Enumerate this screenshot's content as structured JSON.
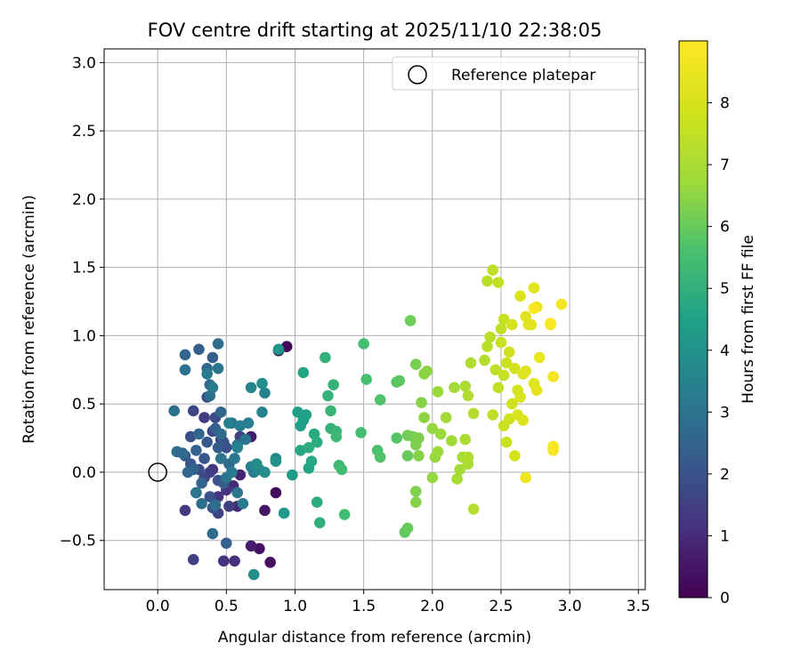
{
  "chart_data": {
    "type": "scatter",
    "title": "FOV centre drift starting at 2025/11/10 22:38:05",
    "xlabel": "Angular distance from reference (arcmin)",
    "ylabel": "Rotation from reference (arcmin)",
    "xlim": [
      -0.39,
      3.55
    ],
    "ylim": [
      -0.86,
      3.1
    ],
    "xticks": [
      0.0,
      0.5,
      1.0,
      1.5,
      2.0,
      2.5,
      3.0,
      3.5
    ],
    "xtick_labels": [
      "0.0",
      "0.5",
      "1.0",
      "1.5",
      "2.0",
      "2.5",
      "3.0",
      "3.5"
    ],
    "yticks": [
      -0.5,
      0.0,
      0.5,
      1.0,
      1.5,
      2.0,
      2.5,
      3.0
    ],
    "ytick_labels": [
      "−0.5",
      "0.0",
      "0.5",
      "1.0",
      "1.5",
      "2.0",
      "2.5",
      "3.0"
    ],
    "grid": true,
    "legend": {
      "placement": "top-right",
      "label": "Reference platepar"
    },
    "reference_point": {
      "x": 0.0,
      "y": 0.0
    },
    "colorbar": {
      "label": "Hours from first FF file",
      "min": 0,
      "max": 9,
      "ticks": [
        0,
        1,
        2,
        3,
        4,
        5,
        6,
        7,
        8
      ],
      "tick_labels": [
        "0",
        "1",
        "2",
        "3",
        "4",
        "5",
        "6",
        "7",
        "8"
      ],
      "colormap": "viridis"
    },
    "points": [
      [
        0.94,
        0.92,
        0.1
      ],
      [
        0.88,
        0.89,
        0.2
      ],
      [
        0.86,
        -0.15,
        0.2
      ],
      [
        0.82,
        -0.66,
        0.3
      ],
      [
        0.74,
        -0.56,
        0.4
      ],
      [
        0.78,
        -0.28,
        0.5
      ],
      [
        0.68,
        -0.54,
        0.6
      ],
      [
        0.68,
        0.26,
        0.7
      ],
      [
        0.6,
        -0.02,
        0.8
      ],
      [
        0.58,
        -0.25,
        0.9
      ],
      [
        0.55,
        -0.1,
        1.0
      ],
      [
        0.48,
        -0.65,
        1.1
      ],
      [
        0.56,
        -0.65,
        1.1
      ],
      [
        0.5,
        -0.13,
        1.2
      ],
      [
        0.44,
        -0.18,
        1.2
      ],
      [
        0.4,
        0.02,
        1.3
      ],
      [
        0.2,
        -0.28,
        1.3
      ],
      [
        0.34,
        0.4,
        1.4
      ],
      [
        0.38,
        0.0,
        1.4
      ],
      [
        0.26,
        -0.64,
        1.5
      ],
      [
        0.52,
        -0.25,
        1.5
      ],
      [
        0.26,
        0.45,
        1.6
      ],
      [
        0.44,
        -0.3,
        1.6
      ],
      [
        0.6,
        0.26,
        1.6
      ],
      [
        0.4,
        0.3,
        1.7
      ],
      [
        0.34,
        -0.04,
        1.7
      ],
      [
        0.46,
        0.24,
        1.7
      ],
      [
        0.3,
        0.02,
        1.8
      ],
      [
        0.36,
        0.55,
        1.8
      ],
      [
        0.42,
        0.4,
        1.8
      ],
      [
        0.24,
        0.26,
        1.9
      ],
      [
        0.5,
        0.18,
        1.9
      ],
      [
        0.28,
        -0.15,
        1.9
      ],
      [
        0.38,
        -0.18,
        2.0
      ],
      [
        0.44,
        -0.06,
        2.0
      ],
      [
        0.48,
        0.22,
        2.0
      ],
      [
        0.24,
        0.06,
        2.1
      ],
      [
        0.4,
        -0.26,
        2.1
      ],
      [
        0.34,
        0.1,
        2.1
      ],
      [
        0.2,
        0.12,
        2.2
      ],
      [
        0.44,
        0.18,
        2.2
      ],
      [
        0.36,
        0.22,
        2.2
      ],
      [
        0.3,
        0.9,
        2.3
      ],
      [
        0.48,
        -0.08,
        2.3
      ],
      [
        0.4,
        0.84,
        2.3
      ],
      [
        0.28,
        0.16,
        2.4
      ],
      [
        0.42,
        0.32,
        2.4
      ],
      [
        0.5,
        -0.52,
        2.4
      ],
      [
        0.32,
        -0.08,
        2.5
      ],
      [
        0.26,
        0.02,
        2.5
      ],
      [
        0.2,
        0.86,
        2.5
      ],
      [
        0.38,
        0.64,
        2.6
      ],
      [
        0.46,
        0.44,
        2.6
      ],
      [
        0.36,
        0.76,
        2.6
      ],
      [
        0.3,
        0.28,
        2.6
      ],
      [
        0.22,
        0.0,
        2.6
      ],
      [
        0.18,
        0.14,
        2.7
      ],
      [
        0.46,
        0.28,
        2.7
      ],
      [
        0.4,
        -0.45,
        2.7
      ],
      [
        0.52,
        0.06,
        2.7
      ],
      [
        0.14,
        0.15,
        2.8
      ],
      [
        0.42,
        -0.24,
        2.8
      ],
      [
        0.32,
        -0.23,
        2.8
      ],
      [
        0.44,
        0.94,
        2.8
      ],
      [
        0.2,
        0.75,
        2.9
      ],
      [
        0.38,
        0.56,
        2.9
      ],
      [
        0.12,
        0.45,
        2.9
      ],
      [
        0.54,
        0.36,
        2.9
      ],
      [
        0.28,
        -0.15,
        3.0
      ],
      [
        0.46,
        0.1,
        3.0
      ],
      [
        0.58,
        0.2,
        3.0
      ],
      [
        0.64,
        0.24,
        3.0
      ],
      [
        0.58,
        -0.15,
        3.1
      ],
      [
        0.56,
        0.1,
        3.1
      ],
      [
        0.5,
        -0.04,
        3.1
      ],
      [
        0.44,
        0.76,
        3.1
      ],
      [
        0.36,
        0.72,
        3.2
      ],
      [
        0.4,
        0.62,
        3.2
      ],
      [
        0.62,
        -0.23,
        3.2
      ],
      [
        0.54,
        0.0,
        3.2
      ],
      [
        0.66,
        0.36,
        3.3
      ],
      [
        0.6,
        0.34,
        3.3
      ],
      [
        0.7,
        0.0,
        3.3
      ],
      [
        0.52,
        0.36,
        3.4
      ],
      [
        0.58,
        0.18,
        3.4
      ],
      [
        0.68,
        0.04,
        3.4
      ],
      [
        0.76,
        0.44,
        3.5
      ],
      [
        0.78,
        0.58,
        3.5
      ],
      [
        0.74,
        0.02,
        3.6
      ],
      [
        0.68,
        0.62,
        3.6
      ],
      [
        0.86,
        0.1,
        3.7
      ],
      [
        0.72,
        0.06,
        3.8
      ],
      [
        0.78,
        0.0,
        3.8
      ],
      [
        0.7,
        -0.75,
        3.9
      ],
      [
        0.76,
        0.65,
        3.9
      ],
      [
        0.86,
        0.08,
        4.0
      ],
      [
        0.88,
        0.9,
        4.1
      ],
      [
        0.92,
        -0.3,
        4.2
      ],
      [
        0.98,
        -0.02,
        4.3
      ],
      [
        1.02,
        0.44,
        4.4
      ],
      [
        1.04,
        0.34,
        4.4
      ],
      [
        1.06,
        0.38,
        4.5
      ],
      [
        1.08,
        0.42,
        4.5
      ],
      [
        1.1,
        0.03,
        4.6
      ],
      [
        1.06,
        0.73,
        4.6
      ],
      [
        1.12,
        0.08,
        4.7
      ],
      [
        1.04,
        0.16,
        4.7
      ],
      [
        1.14,
        0.28,
        4.8
      ],
      [
        1.16,
        0.22,
        4.8
      ],
      [
        1.1,
        0.18,
        4.9
      ],
      [
        1.16,
        -0.22,
        4.9
      ],
      [
        1.18,
        -0.37,
        5.0
      ],
      [
        1.22,
        0.84,
        5.0
      ],
      [
        1.24,
        0.56,
        5.1
      ],
      [
        1.26,
        0.32,
        5.1
      ],
      [
        1.28,
        0.64,
        5.1
      ],
      [
        1.3,
        0.3,
        5.2
      ],
      [
        1.26,
        0.45,
        5.2
      ],
      [
        1.3,
        0.26,
        5.3
      ],
      [
        1.32,
        0.05,
        5.3
      ],
      [
        1.34,
        0.02,
        5.4
      ],
      [
        1.36,
        -0.31,
        5.4
      ],
      [
        1.48,
        0.29,
        5.5
      ],
      [
        1.5,
        0.94,
        5.5
      ],
      [
        1.52,
        0.68,
        5.6
      ],
      [
        1.6,
        0.16,
        5.6
      ],
      [
        1.62,
        0.11,
        5.7
      ],
      [
        1.62,
        0.53,
        5.7
      ],
      [
        1.74,
        0.25,
        5.8
      ],
      [
        1.74,
        0.66,
        5.8
      ],
      [
        1.76,
        0.67,
        5.9
      ],
      [
        1.8,
        -0.44,
        5.9
      ],
      [
        1.82,
        -0.41,
        6.0
      ],
      [
        1.82,
        0.12,
        6.0
      ],
      [
        1.82,
        0.27,
        6.1
      ],
      [
        1.84,
        1.11,
        6.1
      ],
      [
        1.86,
        0.26,
        6.2
      ],
      [
        1.88,
        0.79,
        6.2
      ],
      [
        1.88,
        0.2,
        6.3
      ],
      [
        1.9,
        0.25,
        6.3
      ],
      [
        1.88,
        -0.14,
        6.3
      ],
      [
        1.88,
        -0.22,
        6.4
      ],
      [
        1.9,
        0.12,
        6.4
      ],
      [
        1.92,
        0.51,
        6.4
      ],
      [
        1.94,
        0.4,
        6.5
      ],
      [
        1.94,
        0.72,
        6.5
      ],
      [
        1.96,
        0.74,
        6.5
      ],
      [
        2.0,
        0.32,
        6.6
      ],
      [
        2.0,
        -0.04,
        6.6
      ],
      [
        2.02,
        0.11,
        6.6
      ],
      [
        2.04,
        0.15,
        6.7
      ],
      [
        2.04,
        0.59,
        6.7
      ],
      [
        2.06,
        0.28,
        6.7
      ],
      [
        2.1,
        0.4,
        6.8
      ],
      [
        2.14,
        0.23,
        6.8
      ],
      [
        2.16,
        0.62,
        6.8
      ],
      [
        2.18,
        -0.05,
        6.9
      ],
      [
        2.2,
        0.02,
        6.9
      ],
      [
        2.22,
        0.11,
        6.9
      ],
      [
        2.24,
        0.63,
        7.0
      ],
      [
        2.24,
        0.24,
        7.0
      ],
      [
        2.26,
        0.06,
        7.0
      ],
      [
        2.26,
        0.11,
        7.1
      ],
      [
        2.26,
        0.56,
        7.1
      ],
      [
        2.28,
        0.8,
        7.1
      ],
      [
        2.3,
        0.43,
        7.2
      ],
      [
        2.3,
        -0.27,
        7.2
      ],
      [
        2.38,
        0.82,
        7.2
      ],
      [
        2.4,
        1.4,
        7.3
      ],
      [
        2.4,
        0.92,
        7.3
      ],
      [
        2.42,
        0.99,
        7.3
      ],
      [
        2.44,
        0.42,
        7.4
      ],
      [
        2.44,
        1.48,
        7.4
      ],
      [
        2.46,
        0.75,
        7.4
      ],
      [
        2.48,
        0.62,
        7.5
      ],
      [
        2.48,
        1.39,
        7.5
      ],
      [
        2.5,
        1.05,
        7.5
      ],
      [
        2.5,
        0.95,
        7.6
      ],
      [
        2.52,
        1.12,
        7.6
      ],
      [
        2.52,
        0.71,
        7.6
      ],
      [
        2.52,
        0.34,
        7.7
      ],
      [
        2.54,
        0.8,
        7.7
      ],
      [
        2.54,
        0.22,
        7.7
      ],
      [
        2.56,
        0.88,
        7.8
      ],
      [
        2.56,
        0.39,
        7.8
      ],
      [
        2.58,
        0.5,
        7.8
      ],
      [
        2.58,
        1.08,
        7.9
      ],
      [
        2.6,
        0.76,
        7.9
      ],
      [
        2.6,
        0.12,
        7.9
      ],
      [
        2.62,
        0.6,
        8.0
      ],
      [
        2.62,
        0.42,
        8.0
      ],
      [
        2.64,
        0.55,
        8.0
      ],
      [
        2.64,
        1.29,
        8.1
      ],
      [
        2.66,
        0.38,
        8.1
      ],
      [
        2.66,
        0.72,
        8.1
      ],
      [
        2.68,
        1.14,
        8.2
      ],
      [
        2.68,
        0.74,
        8.2
      ],
      [
        2.7,
        1.08,
        8.2
      ],
      [
        2.72,
        1.08,
        8.3
      ],
      [
        2.74,
        1.35,
        8.3
      ],
      [
        2.74,
        0.65,
        8.3
      ],
      [
        2.76,
        1.21,
        8.4
      ],
      [
        2.76,
        0.6,
        8.4
      ],
      [
        2.78,
        0.84,
        8.5
      ],
      [
        2.68,
        -0.04,
        8.6
      ],
      [
        2.86,
        1.08,
        8.6
      ],
      [
        2.88,
        0.7,
        8.7
      ],
      [
        2.88,
        0.18,
        8.7
      ],
      [
        2.88,
        0.16,
        8.8
      ],
      [
        2.94,
        1.23,
        8.8
      ],
      [
        2.86,
        1.09,
        8.9
      ],
      [
        2.74,
        1.2,
        8.9
      ],
      [
        2.88,
        0.19,
        8.9
      ]
    ]
  }
}
